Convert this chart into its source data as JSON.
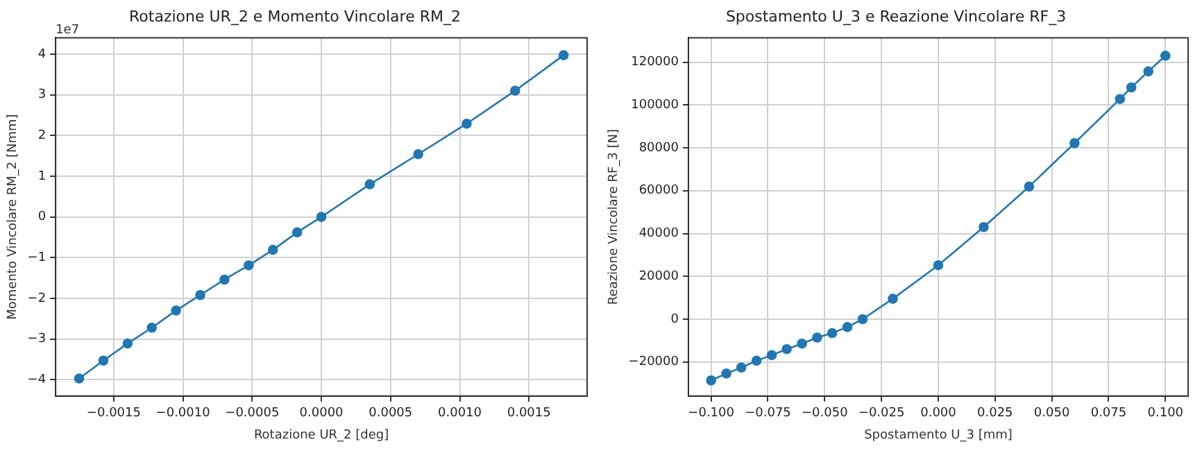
{
  "chart_data": [
    {
      "type": "line",
      "title": "Rotazione UR_2 e Momento Vincolare RM_2",
      "xlabel": "Rotazione UR_2 [deg]",
      "ylabel": "Momento Vincolare RM_2 [Nmm]",
      "annotations": [
        "1e7"
      ],
      "x": [
        -0.00175,
        -0.001575,
        -0.0014,
        -0.001225,
        -0.00105,
        -0.000875,
        -0.0007,
        -0.000525,
        -0.00035,
        -0.000175,
        0,
        0.00035,
        0.0007,
        0.00105,
        0.0014,
        0.00175
      ],
      "series": [
        {
          "color": "#1f77b4",
          "values": [
            -3.97,
            -3.53,
            -3.11,
            -2.72,
            -2.3,
            -1.92,
            -1.54,
            -1.19,
            -0.81,
            -0.38,
            0,
            0.8,
            1.54,
            2.29,
            3.1,
            3.97
          ]
        }
      ],
      "xlim": [
        -0.00192,
        0.00192
      ],
      "ylim": [
        -4.4,
        4.4
      ],
      "xticks": [
        {
          "value": -0.0015,
          "label": "−0.0015"
        },
        {
          "value": -0.001,
          "label": "−0.0010"
        },
        {
          "value": -0.0005,
          "label": "−0.0005"
        },
        {
          "value": 0,
          "label": "0.0000"
        },
        {
          "value": 0.0005,
          "label": "0.0005"
        },
        {
          "value": 0.001,
          "label": "0.0010"
        },
        {
          "value": 0.0015,
          "label": "0.0015"
        }
      ],
      "yticks": [
        {
          "value": -4,
          "label": "−4"
        },
        {
          "value": -3,
          "label": "−3"
        },
        {
          "value": -2,
          "label": "−2"
        },
        {
          "value": -1,
          "label": "−1"
        },
        0,
        1,
        2,
        3,
        4
      ],
      "grid": true,
      "marker": "circle",
      "line_style": "solid"
    },
    {
      "type": "line",
      "title": "Spostamento U_3 e Reazione Vincolare RF_3",
      "xlabel": "Spostamento U_3 [mm]",
      "ylabel": "Reazione Vincolare RF_3 [N]",
      "x": [
        -0.1,
        -0.0933,
        -0.0867,
        -0.08,
        -0.0733,
        -0.0667,
        -0.06,
        -0.0533,
        -0.0467,
        -0.04,
        -0.0333,
        -0.02,
        0,
        0.02,
        0.04,
        0.06,
        0.08,
        0.085,
        0.0925,
        0.1
      ],
      "series": [
        {
          "color": "#1f77b4",
          "values": [
            -28600,
            -25400,
            -22600,
            -19400,
            -16800,
            -14000,
            -11400,
            -8600,
            -6500,
            -3700,
            0,
            9500,
            25200,
            43000,
            61900,
            82200,
            102800,
            108200,
            115700,
            123000
          ]
        }
      ],
      "xlim": [
        -0.11,
        0.11
      ],
      "ylim": [
        -35900,
        131400
      ],
      "xticks": [
        {
          "value": -0.1,
          "label": "−0.100"
        },
        {
          "value": -0.075,
          "label": "−0.075"
        },
        {
          "value": -0.05,
          "label": "−0.050"
        },
        {
          "value": -0.025,
          "label": "−0.025"
        },
        {
          "value": 0,
          "label": "0.000"
        },
        {
          "value": 0.025,
          "label": "0.025"
        },
        {
          "value": 0.05,
          "label": "0.050"
        },
        {
          "value": 0.075,
          "label": "0.075"
        },
        {
          "value": 0.1,
          "label": "0.100"
        }
      ],
      "yticks": [
        {
          "value": -20000,
          "label": "−20000"
        },
        0,
        20000,
        40000,
        60000,
        80000,
        100000,
        120000
      ],
      "grid": true,
      "marker": "circle",
      "line_style": "solid"
    }
  ]
}
